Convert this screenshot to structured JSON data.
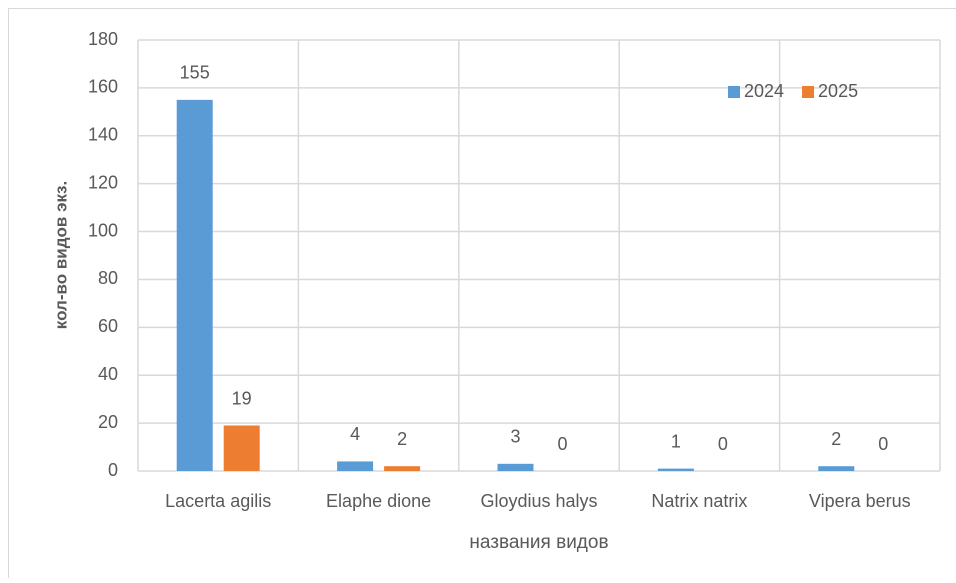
{
  "chart_data": {
    "type": "bar",
    "xlabel": "названия видов",
    "ylabel": "кол-во видов экз.",
    "categories": [
      "Lacerta agilis",
      "Elaphe dione",
      "Gloydius halys",
      "Natrix natrix",
      "Vipera berus"
    ],
    "series": [
      {
        "name": "2024",
        "color": "#5b9bd5",
        "values": [
          155,
          4,
          3,
          1,
          2
        ]
      },
      {
        "name": "2025",
        "color": "#ed7d31",
        "values": [
          19,
          2,
          0,
          0,
          0
        ]
      }
    ],
    "ylim": [
      0,
      180
    ],
    "yticks": [
      0,
      20,
      40,
      60,
      80,
      100,
      120,
      140,
      160,
      180
    ],
    "grid": true,
    "legend": "top-right",
    "data_labels": true
  }
}
